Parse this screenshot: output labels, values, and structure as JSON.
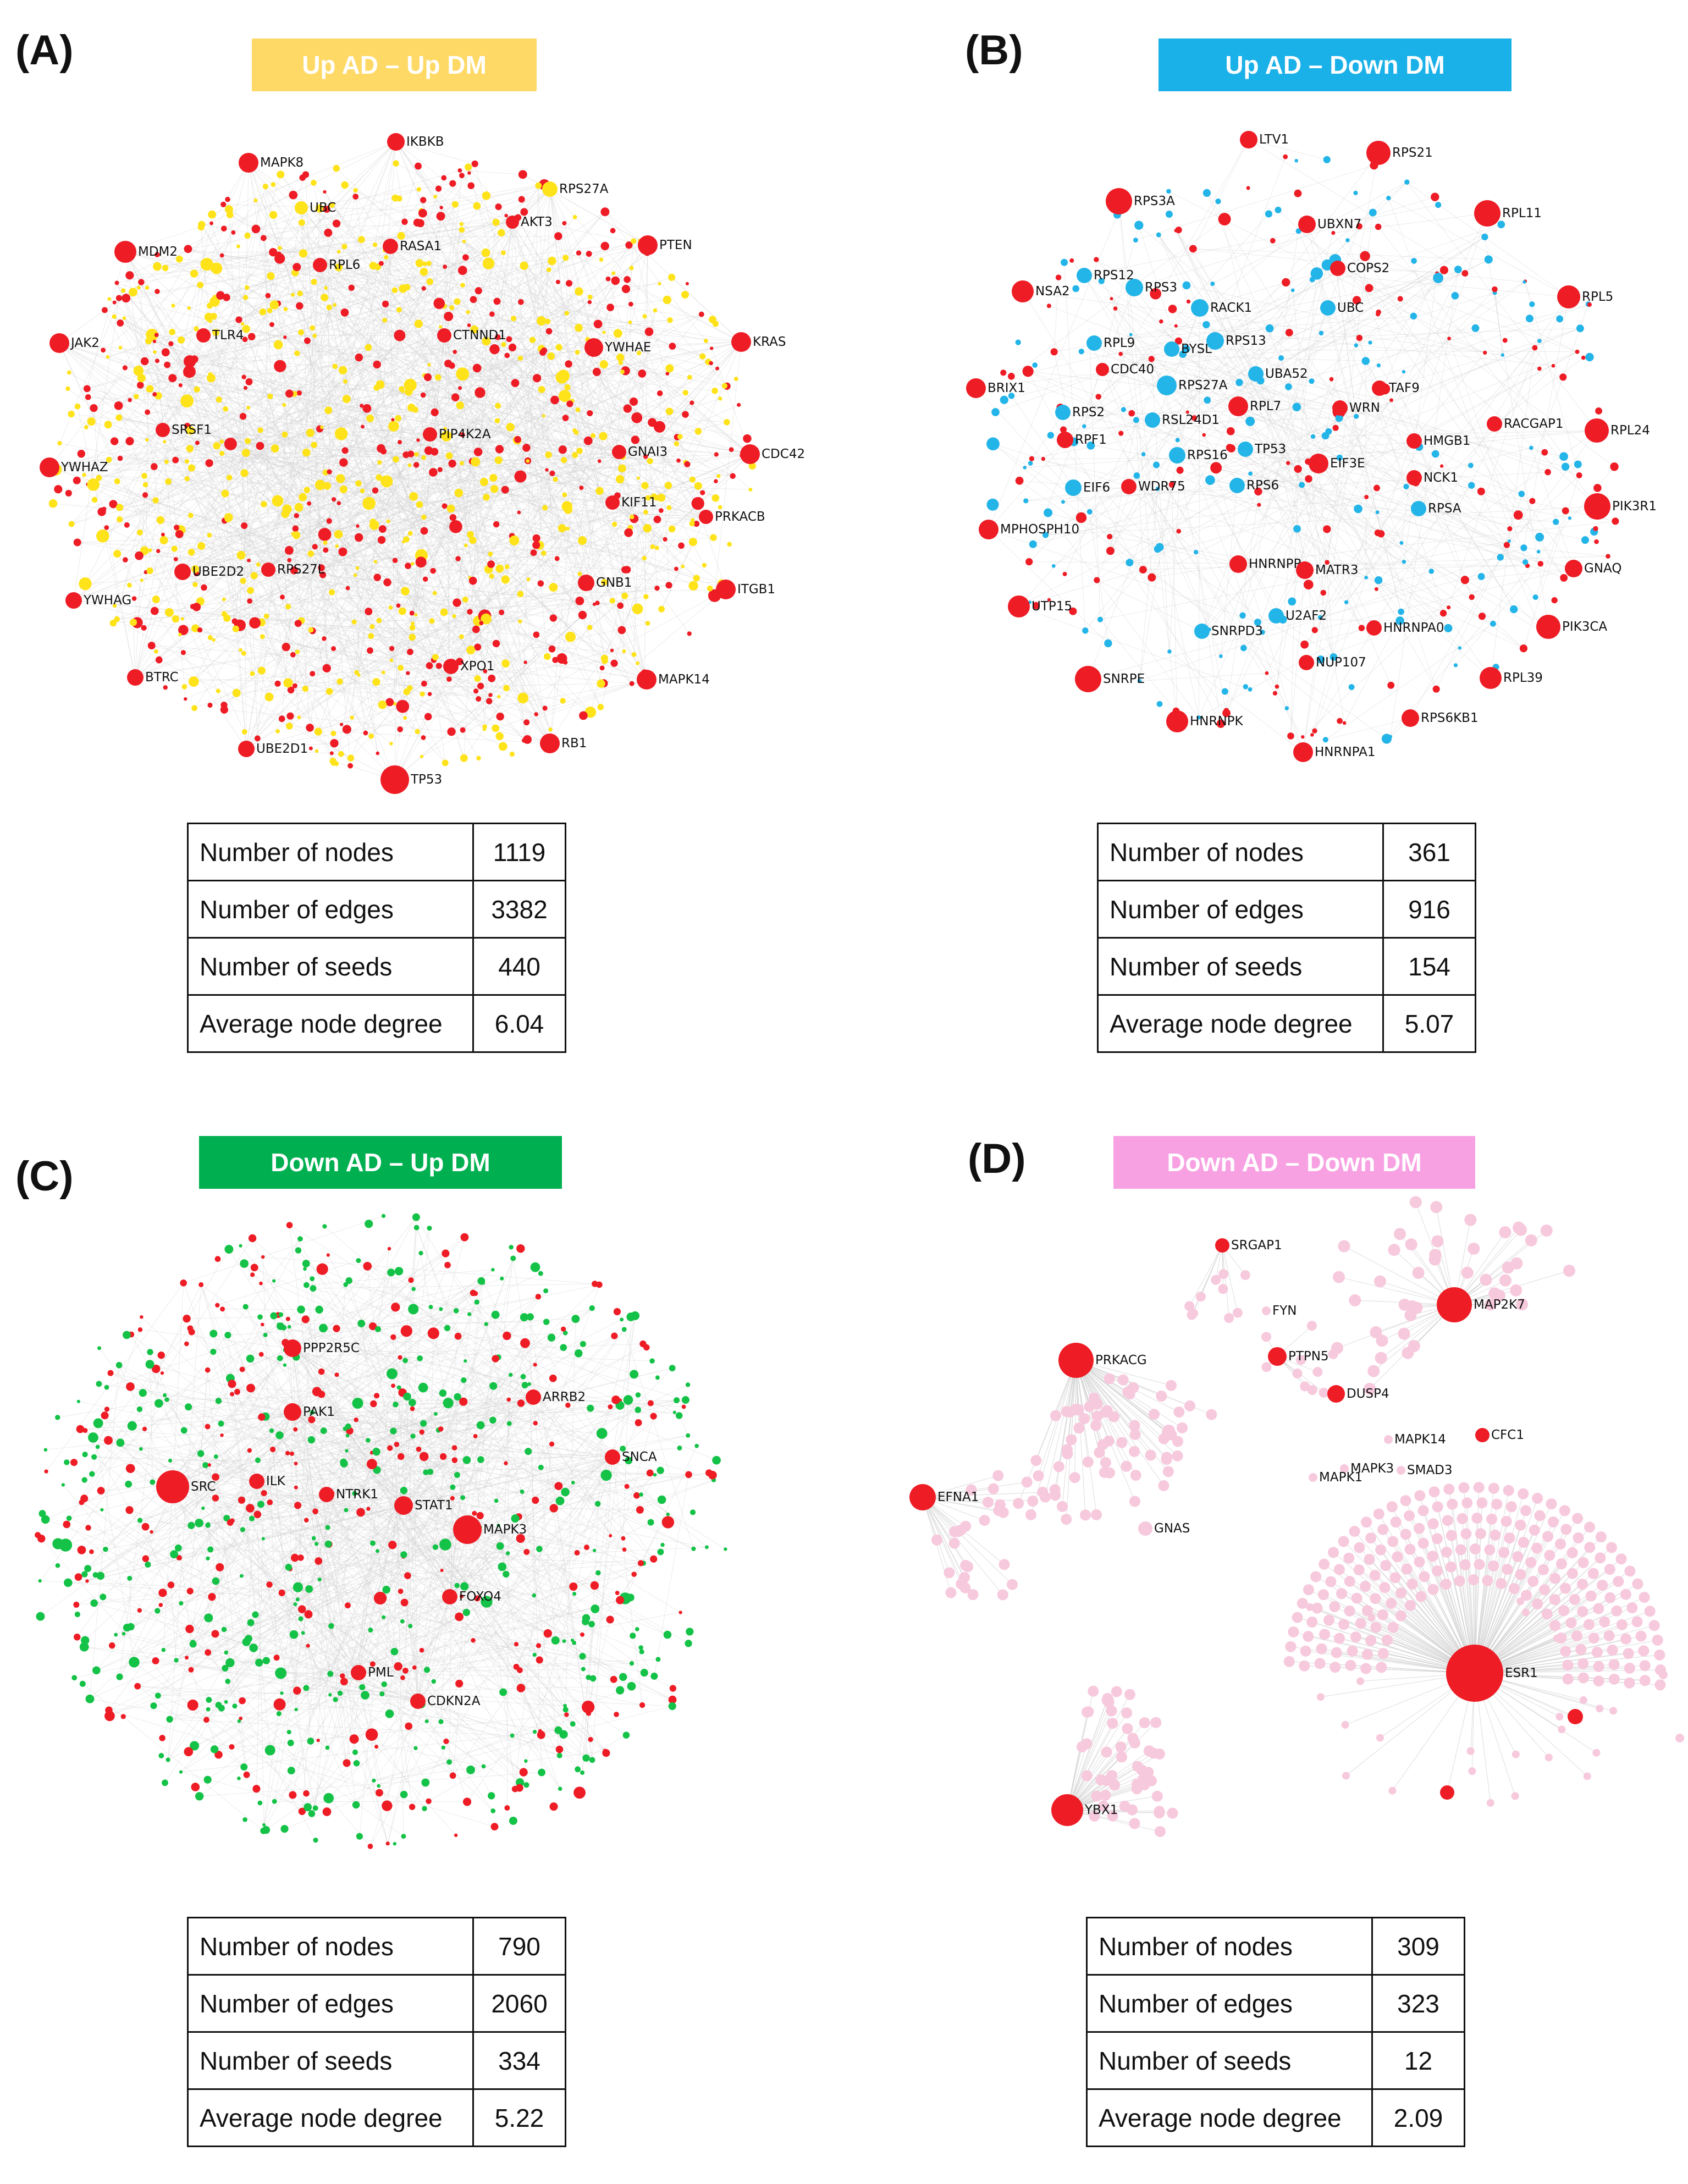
{
  "colors": {
    "seed": "#ee1c25",
    "edge": "#cfcfcf",
    "A": "#ffe31a",
    "B": "#23b4e8",
    "C": "#14c247",
    "D": "#f7c9dc"
  },
  "panels": [
    {
      "label": "(A)",
      "title": "Up AD – Up DM",
      "banner_color": "#ffd966",
      "genes": [
        "IKBKB",
        "MAPK8",
        "RPS27A",
        "UBC",
        "AKT3",
        "MDM2",
        "RASA1",
        "PTEN",
        "RPL6",
        "TLR4",
        "CTNND1",
        "YWHAE",
        "JAK2",
        "KRAS",
        "SRSF1",
        "PIP4K2A",
        "GNAI3",
        "CDC42",
        "YWHAZ",
        "KIF11",
        "PRKACB",
        "UBE2D2",
        "RPS27L",
        "GNB1",
        "YWHAG",
        "ITGB1",
        "BTRC",
        "XPO1",
        "MAPK14",
        "UBE2D1",
        "RB1",
        "TP53"
      ],
      "stats": [
        {
          "label": "Number of nodes",
          "value": "1119"
        },
        {
          "label": "Number of edges",
          "value": "3382"
        },
        {
          "label": "Number of seeds",
          "value": "440"
        },
        {
          "label": "Average node degree",
          "value": "6.04"
        }
      ]
    },
    {
      "label": "(B)",
      "title": "Up AD – Down DM",
      "banner_color": "#1ab0e8",
      "genes": [
        "LTV1",
        "RPS21",
        "RPS3A",
        "UBXN7",
        "RPL11",
        "COPS2",
        "NSA2",
        "RPS12",
        "RPS3",
        "RACK1",
        "UBC",
        "RPL5",
        "RPL9",
        "BYSL",
        "RPS13",
        "CDC40",
        "UBA52",
        "RPS27A",
        "TAF9",
        "BRIX1",
        "RPS2",
        "RPL7",
        "WRN",
        "RACGAP1",
        "RSL24D1",
        "RPF1",
        "RPS16",
        "TP53",
        "HMGB1",
        "RPL24",
        "EIF3E",
        "EIF6",
        "WDR75",
        "RPS6",
        "NCK1",
        "PIK3R1",
        "RPSA",
        "MPHOSPH10",
        "HNRNPR",
        "MATR3",
        "GNAQ",
        "UTP15",
        "U2AF2",
        "HNRNPA0",
        "SNRPD3",
        "PIK3CA",
        "NUP107",
        "SNRPE",
        "RPL39",
        "HNRNPK",
        "RPS6KB1",
        "HNRNPA1"
      ],
      "stats": [
        {
          "label": "Number of nodes",
          "value": "361"
        },
        {
          "label": "Number of edges",
          "value": "916"
        },
        {
          "label": "Number of seeds",
          "value": "154"
        },
        {
          "label": "Average node degree",
          "value": "5.07"
        }
      ]
    },
    {
      "label": "(C)",
      "title": "Down AD – Up DM",
      "banner_color": "#00b050",
      "genes": [
        "PPP2R5C",
        "ARRB2",
        "PAK1",
        "SNCA",
        "SRC",
        "ILK",
        "NTRK1",
        "STAT1",
        "MAPK3",
        "FOXO4",
        "PML",
        "CDKN2A"
      ],
      "stats": [
        {
          "label": "Number of nodes",
          "value": "790"
        },
        {
          "label": "Number of edges",
          "value": "2060"
        },
        {
          "label": "Number of seeds",
          "value": "334"
        },
        {
          "label": "Average node degree",
          "value": "5.22"
        }
      ]
    },
    {
      "label": "(D)",
      "title": "Down AD – Down DM",
      "banner_color": "#f7a1e3",
      "genes": [
        "SRGAP1",
        "MAP2K7",
        "FYN",
        "PRKACG",
        "PTPN5",
        "DUSP4",
        "MAPK14",
        "CFC1",
        "MAPK3",
        "SMAD3",
        "EFNA1",
        "MAPK1",
        "GNAS",
        "ESR1",
        "YBX1"
      ],
      "stats": [
        {
          "label": "Number of nodes",
          "value": "309"
        },
        {
          "label": "Number of edges",
          "value": "323"
        },
        {
          "label": "Number of seeds",
          "value": "12"
        },
        {
          "label": "Average node degree",
          "value": "2.09"
        }
      ]
    }
  ]
}
